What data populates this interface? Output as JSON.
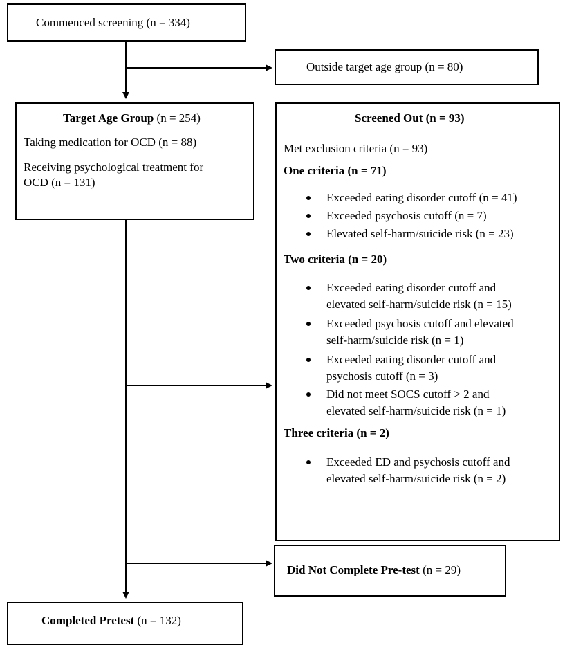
{
  "boxes": {
    "commenced": "Commenced screening (n = 334)",
    "outside": "Outside target age group (n = 80)",
    "target": {
      "title_bold": "Target Age Group",
      "title_rest": " (n = 254)",
      "medication": "Taking medication for OCD (n = 88)",
      "psych_line1": "Receiving psychological treatment for",
      "psych_line2": "OCD (n = 131)"
    },
    "screened_out": {
      "title": "Screened Out (n = 93)",
      "met_exclusion": "Met exclusion criteria (n = 93)",
      "one": {
        "heading": "One criteria (n = 71)",
        "items": [
          [
            "Exceeded eating disorder cutoff (n = 41)"
          ],
          [
            "Exceeded psychosis cutoff (n = 7)"
          ],
          [
            "Elevated self-harm/suicide risk (n = 23)"
          ]
        ]
      },
      "two": {
        "heading": "Two criteria (n = 20)",
        "items": [
          [
            "Exceeded eating disorder cutoff and",
            "elevated self-harm/suicide risk (n = 15)"
          ],
          [
            "Exceeded psychosis cutoff and elevated",
            "self-harm/suicide risk (n = 1)"
          ],
          [
            "Exceeded eating disorder cutoff and",
            "psychosis cutoff (n = 3)"
          ],
          [
            "Did not meet SOCS cutoff > 2 and",
            "elevated self-harm/suicide risk (n = 1)"
          ]
        ]
      },
      "three": {
        "heading": "Three criteria (n = 2)",
        "items": [
          [
            "Exceeded ED and psychosis cutoff and",
            "elevated self-harm/suicide risk (n = 2)"
          ]
        ]
      }
    },
    "not_complete": {
      "bold": "Did Not Complete Pre-test",
      "rest": " (n = 29)"
    },
    "completed": {
      "bold": "Completed Pretest",
      "rest": " (n = 132)"
    }
  }
}
